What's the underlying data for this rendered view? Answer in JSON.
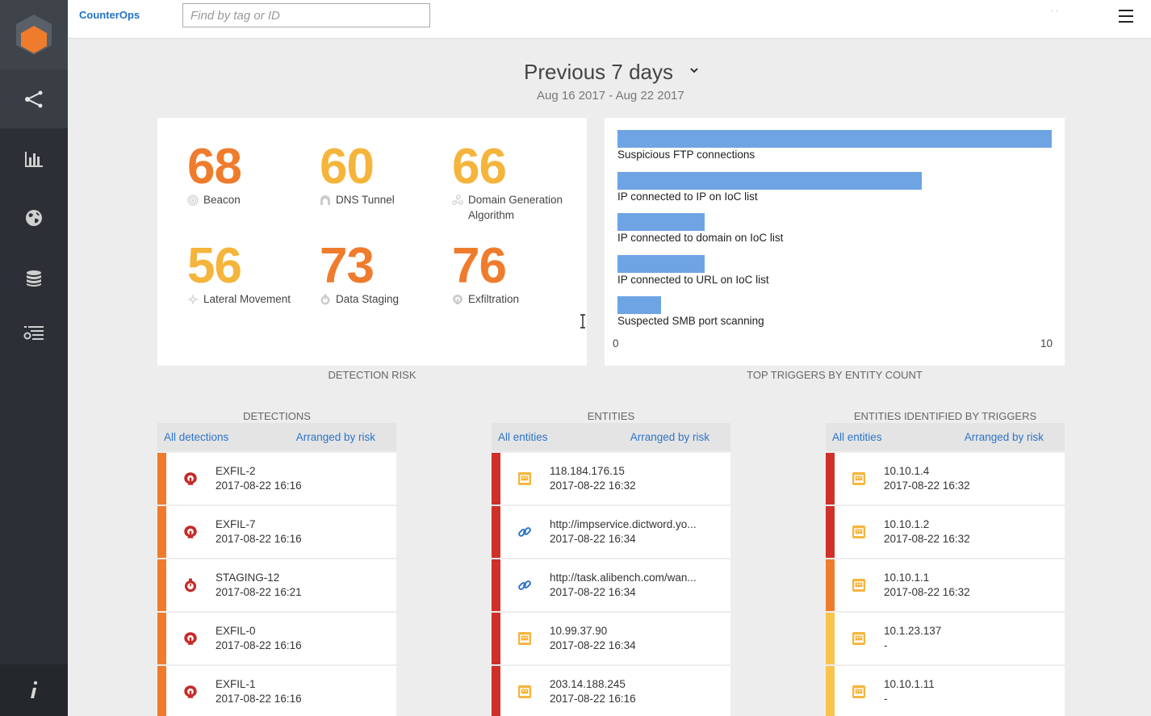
{
  "app": {
    "brand": "CounterOps"
  },
  "search": {
    "placeholder": "Find by tag or ID",
    "value": ""
  },
  "header": {
    "period": "Previous 7 days",
    "date_range": "Aug 16 2017 - Aug 22 2017"
  },
  "colors": {
    "orange": "#ef7c2d",
    "amber": "#f5b43b",
    "red": "#d0302a",
    "yellow": "#f8c44b",
    "bar": "#6ea4e4",
    "link": "#2e74c8"
  },
  "nav": [
    {
      "icon": "share-nodes-icon"
    },
    {
      "icon": "bar-chart-icon"
    },
    {
      "icon": "globe-icon"
    },
    {
      "icon": "database-icon"
    },
    {
      "icon": "list-settings-icon"
    }
  ],
  "detection_risk": {
    "caption": "DETECTION RISK",
    "items": [
      {
        "value": "68",
        "label": "Beacon",
        "color": "#ef7c2d",
        "icon": "beacon-icon"
      },
      {
        "value": "60",
        "label": "DNS Tunnel",
        "color": "#f5b43b",
        "icon": "tunnel-icon"
      },
      {
        "value": "66",
        "label": "Domain Generation Algorithm",
        "color": "#f5b43b",
        "icon": "network-icon"
      },
      {
        "value": "56",
        "label": "Lateral Movement",
        "color": "#f5b43b",
        "icon": "lateral-icon"
      },
      {
        "value": "73",
        "label": "Data Staging",
        "color": "#ef7c2d",
        "icon": "staging-icon"
      },
      {
        "value": "76",
        "label": "Exfiltration",
        "color": "#ef7c2d",
        "icon": "exfil-icon"
      }
    ]
  },
  "chart_data": {
    "type": "bar",
    "orientation": "horizontal",
    "title": "TOP TRIGGERS BY ENTITY COUNT",
    "categories": [
      "Suspicious FTP connections",
      "IP connected to IP on IoC list",
      "IP connected to domain on IoC list",
      "IP connected to URL on IoC list",
      "Suspected SMB port scanning"
    ],
    "values": [
      10,
      7,
      2,
      2,
      1
    ],
    "xlim": [
      0,
      10
    ],
    "x_ticks": [
      "0",
      "10"
    ],
    "grid": false
  },
  "lists": [
    {
      "caption": "DETECTIONS",
      "link_all": "All detections",
      "link_sort": "Arranged by risk",
      "rows": [
        {
          "title": "EXFIL-2",
          "sub": "2017-08-22 16:16",
          "stripe": "#ef7c2d",
          "icon": "exfil-icon"
        },
        {
          "title": "EXFIL-7",
          "sub": "2017-08-22 16:16",
          "stripe": "#ef7c2d",
          "icon": "exfil-icon"
        },
        {
          "title": "STAGING-12",
          "sub": "2017-08-22 16:21",
          "stripe": "#ef7c2d",
          "icon": "staging-icon"
        },
        {
          "title": "EXFIL-0",
          "sub": "2017-08-22 16:16",
          "stripe": "#ef7c2d",
          "icon": "exfil-icon"
        },
        {
          "title": "EXFIL-1",
          "sub": "2017-08-22 16:16",
          "stripe": "#ef7c2d",
          "icon": "exfil-icon"
        }
      ]
    },
    {
      "caption": "ENTITIES",
      "link_all": "All entities",
      "link_sort": "Arranged by risk",
      "rows": [
        {
          "title": "118.184.176.15",
          "sub": "2017-08-22 16:32",
          "stripe": "#d0302a",
          "icon": "host-icon"
        },
        {
          "title": "http://impservice.dictword.yo...",
          "sub": "2017-08-22 16:34",
          "stripe": "#d0302a",
          "icon": "link-icon"
        },
        {
          "title": "http://task.alibench.com/wan...",
          "sub": "2017-08-22 16:34",
          "stripe": "#d0302a",
          "icon": "link-icon"
        },
        {
          "title": "10.99.37.90",
          "sub": "2017-08-22 16:34",
          "stripe": "#d0302a",
          "icon": "host-icon"
        },
        {
          "title": "203.14.188.245",
          "sub": "2017-08-22 16:16",
          "stripe": "#d0302a",
          "icon": "host-icon"
        }
      ]
    },
    {
      "caption": "ENTITIES IDENTIFIED BY TRIGGERS",
      "link_all": "All entities",
      "link_sort": "Arranged by risk",
      "rows": [
        {
          "title": "10.10.1.4",
          "sub": "2017-08-22 16:32",
          "stripe": "#d0302a",
          "icon": "host-icon"
        },
        {
          "title": "10.10.1.2",
          "sub": "2017-08-22 16:32",
          "stripe": "#d0302a",
          "icon": "host-icon"
        },
        {
          "title": "10.10.1.1",
          "sub": "2017-08-22 16:32",
          "stripe": "#ef7c2d",
          "icon": "host-icon"
        },
        {
          "title": "10.1.23.137",
          "sub": "-",
          "stripe": "#f8c44b",
          "icon": "host-icon"
        },
        {
          "title": "10.10.1.11",
          "sub": "-",
          "stripe": "#f8c44b",
          "icon": "host-icon"
        }
      ]
    }
  ]
}
